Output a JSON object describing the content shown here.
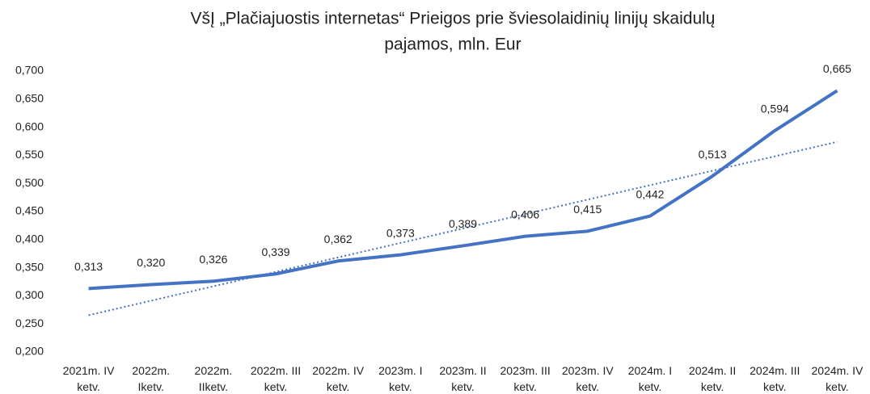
{
  "chart_data": {
    "type": "line",
    "title": [
      "VšĮ „Plačiajuostis internetas“  Prieigos prie šviesolaidinių linijų  skaidulų",
      "pajamos, mln. Eur"
    ],
    "categories": [
      "2021m. IV ketv.",
      "2022m. Iketv.",
      "2022m. IIketv.",
      "2022m. III ketv.",
      "2022m. IV ketv.",
      "2023m. I ketv.",
      "2023m. II ketv.",
      "2023m. III ketv.",
      "2023m. IV ketv.",
      "2024m. I ketv.",
      "2024m. II ketv.",
      "2024m. III ketv.",
      "2024m. IV ketv."
    ],
    "series": [
      {
        "color": "#4472c4",
        "values": [
          0.313,
          0.32,
          0.326,
          0.339,
          0.362,
          0.373,
          0.389,
          0.406,
          0.415,
          0.442,
          0.513,
          0.594,
          0.665
        ],
        "value_labels": [
          "0,313",
          "0,320",
          "0,326",
          "0,339",
          "0,362",
          "0,373",
          "0,389",
          "0,406",
          "0,415",
          "0,442",
          "0,513",
          "0,594",
          "0,665"
        ],
        "trendline": "linear"
      }
    ],
    "ylim": [
      0.2,
      0.7
    ],
    "yticks": [
      {
        "value": 0.2,
        "label": "0,200"
      },
      {
        "value": 0.25,
        "label": "0,250"
      },
      {
        "value": 0.3,
        "label": "0,300"
      },
      {
        "value": 0.35,
        "label": "0,350"
      },
      {
        "value": 0.4,
        "label": "0,400"
      },
      {
        "value": 0.45,
        "label": "0,450"
      },
      {
        "value": 0.5,
        "label": "0,500"
      },
      {
        "value": 0.55,
        "label": "0,550"
      },
      {
        "value": 0.6,
        "label": "0,600"
      },
      {
        "value": 0.65,
        "label": "0,650"
      },
      {
        "value": 0.7,
        "label": "0,700"
      }
    ],
    "grid": false
  }
}
